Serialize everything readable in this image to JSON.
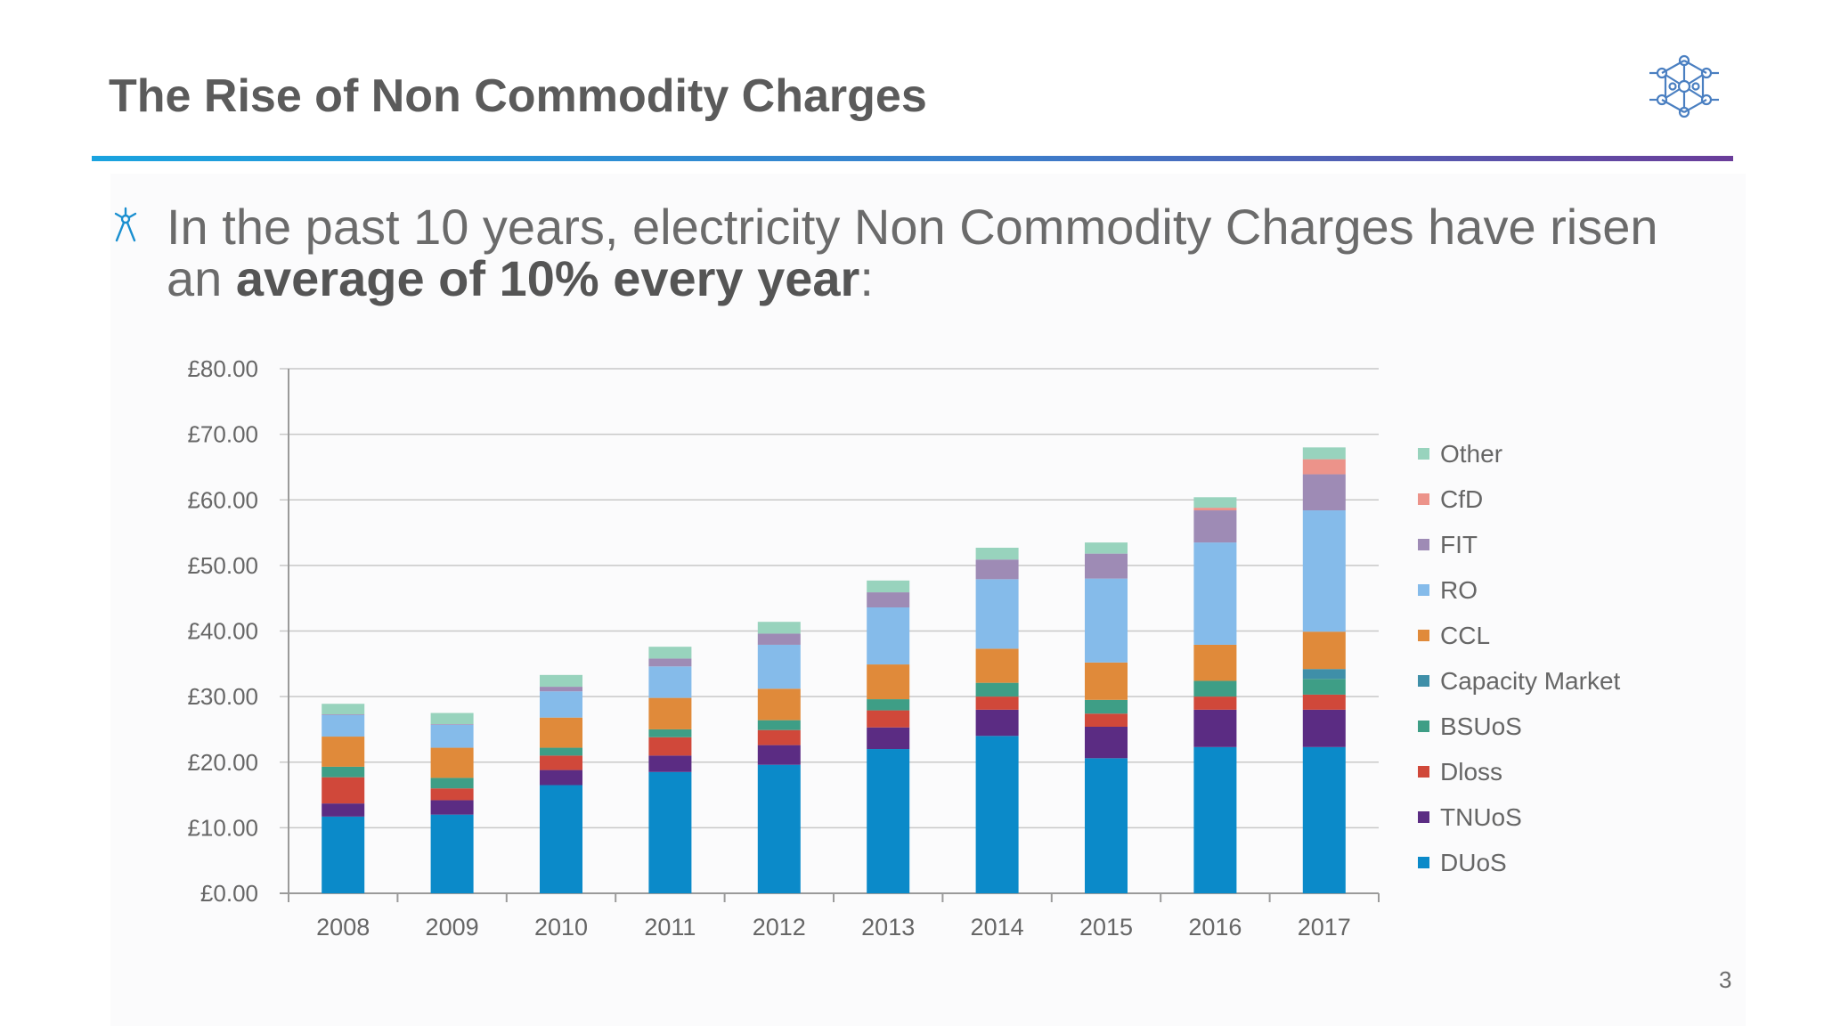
{
  "slide": {
    "title": "The Rise of Non Commodity Charges",
    "bullet_pre": "In the past 10 years, electricity Non Commodity Charges have risen an ",
    "bullet_bold": "average of 10% every year",
    "bullet_post": ":",
    "page_number": "3"
  },
  "colors": {
    "rule_start": "#1aa3df",
    "rule_end": "#6a3d9a",
    "logo": "#4a7fc1"
  },
  "chart_data": {
    "type": "bar",
    "stacked": true,
    "categories": [
      "2008",
      "2009",
      "2010",
      "2011",
      "2012",
      "2013",
      "2014",
      "2015",
      "2016",
      "2017"
    ],
    "ylim": [
      0,
      80
    ],
    "yticks": [
      "£0.00",
      "£10.00",
      "£20.00",
      "£30.00",
      "£40.00",
      "£50.00",
      "£60.00",
      "£70.00",
      "£80.00"
    ],
    "grid": true,
    "legend_position": "right",
    "series": [
      {
        "name": "DUoS",
        "color": "#0b8ac9",
        "values": [
          11.7,
          12.0,
          16.5,
          18.5,
          19.6,
          22.0,
          24.0,
          20.6,
          22.3,
          22.3
        ]
      },
      {
        "name": "TNUoS",
        "color": "#5b2c83",
        "values": [
          2.0,
          2.2,
          2.3,
          2.5,
          3.0,
          3.3,
          4.0,
          4.8,
          5.7,
          5.7
        ]
      },
      {
        "name": "Dloss",
        "color": "#d0483a",
        "values": [
          4.0,
          1.8,
          2.2,
          2.8,
          2.3,
          2.6,
          2.0,
          2.0,
          2.0,
          2.3
        ]
      },
      {
        "name": "BSUoS",
        "color": "#3e9e86",
        "values": [
          1.6,
          1.6,
          1.2,
          1.2,
          1.5,
          1.7,
          2.1,
          2.1,
          2.4,
          2.4
        ]
      },
      {
        "name": "Capacity Market",
        "color": "#3f8fa8",
        "values": [
          0,
          0,
          0,
          0,
          0,
          0,
          0,
          0,
          0,
          1.5
        ]
      },
      {
        "name": "CCL",
        "color": "#e08a3a",
        "values": [
          4.6,
          4.6,
          4.6,
          4.8,
          4.8,
          5.3,
          5.2,
          5.7,
          5.5,
          5.7
        ]
      },
      {
        "name": "RO",
        "color": "#85bbea",
        "values": [
          3.3,
          3.5,
          4.0,
          4.8,
          6.7,
          8.7,
          10.6,
          12.8,
          15.6,
          18.5
        ]
      },
      {
        "name": "FIT",
        "color": "#9e8bb5",
        "values": [
          0.1,
          0.1,
          0.7,
          1.2,
          1.7,
          2.3,
          3.0,
          3.8,
          4.9,
          5.5
        ]
      },
      {
        "name": "CfD",
        "color": "#ec938a",
        "values": [
          0,
          0,
          0,
          0,
          0,
          0,
          0,
          0,
          0.4,
          2.3
        ]
      },
      {
        "name": "Other",
        "color": "#98d3bd",
        "values": [
          1.6,
          1.7,
          1.8,
          1.8,
          1.8,
          1.8,
          1.8,
          1.7,
          1.6,
          1.8
        ]
      }
    ]
  }
}
